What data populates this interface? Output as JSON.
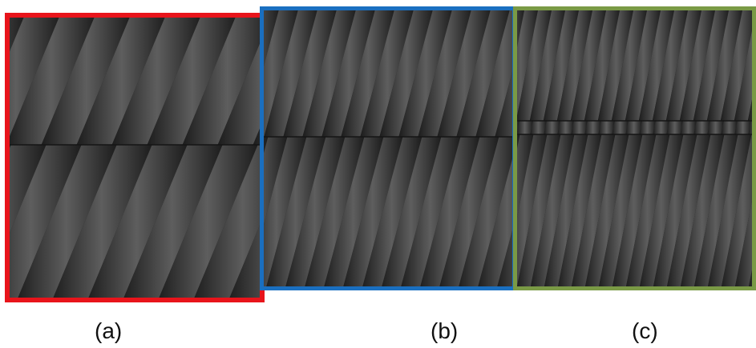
{
  "panels": [
    {
      "id": "a",
      "label": "(a)",
      "border_color": "#e8141b"
    },
    {
      "id": "b",
      "label": "(b)",
      "border_color": "#1a6fc0"
    },
    {
      "id": "c",
      "label": "(c)",
      "border_color": "#7a9a45"
    }
  ],
  "image": {
    "description_kind": "diagonal interference fringe pattern",
    "stripe_dark": "#1c1c1c",
    "stripe_light": "#5e5e5e"
  }
}
